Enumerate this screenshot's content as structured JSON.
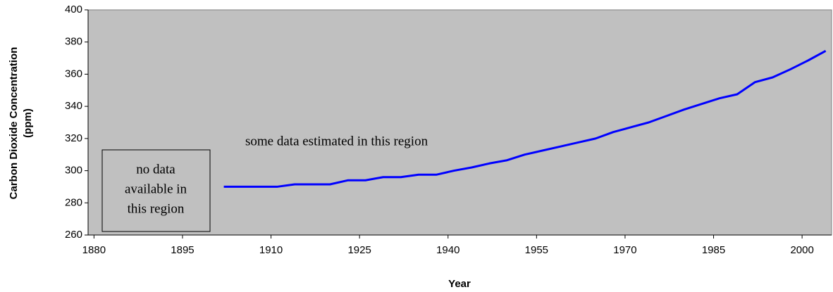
{
  "chart_data": {
    "type": "line",
    "x_label": "Year",
    "y_label": [
      "Carbon Dioxide Concentration",
      "(ppm)"
    ],
    "annotations": [
      {
        "text": [
          "some data estimated in this region"
        ]
      },
      {
        "text": [
          "no data",
          "available in",
          "this region"
        ]
      }
    ],
    "x": [
      1902,
      1905,
      1908,
      1911,
      1914,
      1917,
      1920,
      1923,
      1926,
      1929,
      1932,
      1935,
      1938,
      1941,
      1944,
      1947,
      1950,
      1953,
      1956,
      1959,
      1962,
      1965,
      1968,
      1971,
      1974,
      1977,
      1980,
      1983,
      1986,
      1989,
      1992,
      1995,
      1998,
      2001,
      2004
    ],
    "series": [
      {
        "color": "#0000ff",
        "values": [
          290,
          290,
          290,
          290,
          291.5,
          291.5,
          291.5,
          294,
          294,
          296,
          296,
          297.5,
          297.5,
          300,
          302,
          304.5,
          306.5,
          310,
          312.5,
          315,
          317.5,
          320,
          324,
          327,
          330,
          334,
          338,
          341.5,
          345,
          347.5,
          355,
          358,
          363,
          368.5,
          374.5
        ]
      }
    ],
    "xlim": [
      1879,
      2005
    ],
    "xticks": [
      1880,
      1895,
      1910,
      1925,
      1940,
      1955,
      1970,
      1985,
      2000
    ],
    "ylim": [
      260,
      400
    ],
    "yticks": [
      260,
      280,
      300,
      320,
      340,
      360,
      380,
      400
    ],
    "background": "#c0c0c0"
  }
}
